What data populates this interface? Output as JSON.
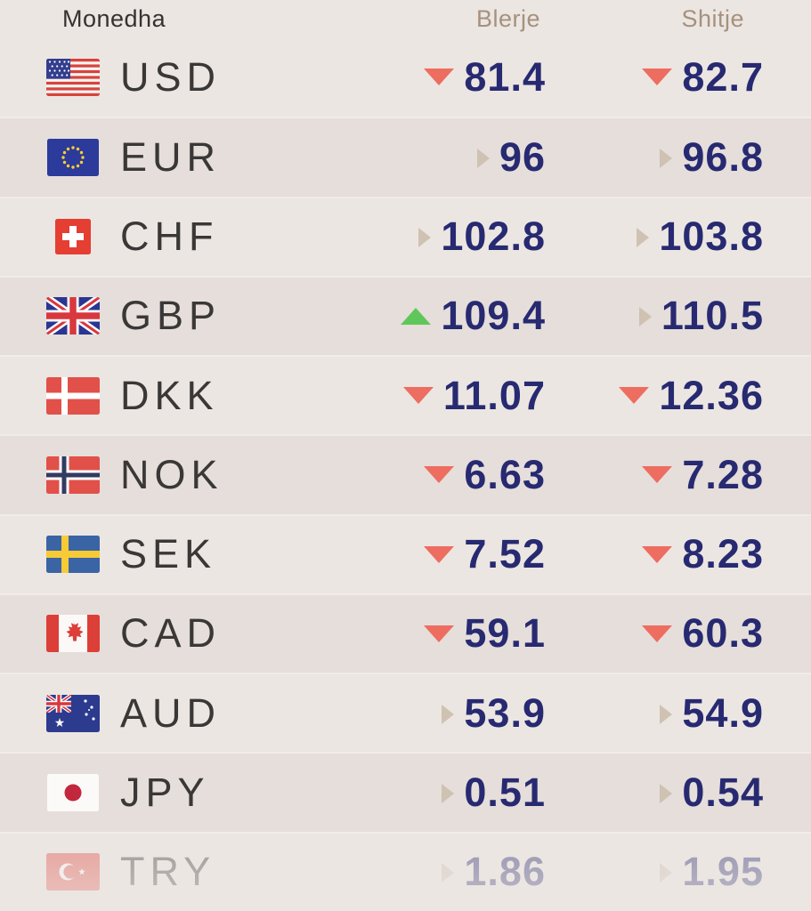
{
  "table": {
    "headers": {
      "currency": "Monedha",
      "buy": "Blerje",
      "sell": "Shitje"
    },
    "rows": [
      {
        "code": "USD",
        "flag": "flag-usa-icon",
        "buy": {
          "value": "81.4",
          "trend": "down"
        },
        "sell": {
          "value": "82.7",
          "trend": "down"
        }
      },
      {
        "code": "EUR",
        "flag": "flag-eu-icon",
        "buy": {
          "value": "96",
          "trend": "flat"
        },
        "sell": {
          "value": "96.8",
          "trend": "flat"
        }
      },
      {
        "code": "CHF",
        "flag": "flag-switzerland-icon",
        "buy": {
          "value": "102.8",
          "trend": "flat"
        },
        "sell": {
          "value": "103.8",
          "trend": "flat"
        }
      },
      {
        "code": "GBP",
        "flag": "flag-uk-icon",
        "buy": {
          "value": "109.4",
          "trend": "up"
        },
        "sell": {
          "value": "110.5",
          "trend": "flat"
        }
      },
      {
        "code": "DKK",
        "flag": "flag-denmark-icon",
        "buy": {
          "value": "11.07",
          "trend": "down"
        },
        "sell": {
          "value": "12.36",
          "trend": "down"
        }
      },
      {
        "code": "NOK",
        "flag": "flag-norway-icon",
        "buy": {
          "value": "6.63",
          "trend": "down"
        },
        "sell": {
          "value": "7.28",
          "trend": "down"
        }
      },
      {
        "code": "SEK",
        "flag": "flag-sweden-icon",
        "buy": {
          "value": "7.52",
          "trend": "down"
        },
        "sell": {
          "value": "8.23",
          "trend": "down"
        }
      },
      {
        "code": "CAD",
        "flag": "flag-canada-icon",
        "buy": {
          "value": "59.1",
          "trend": "down"
        },
        "sell": {
          "value": "60.3",
          "trend": "down"
        }
      },
      {
        "code": "AUD",
        "flag": "flag-australia-icon",
        "buy": {
          "value": "53.9",
          "trend": "flat"
        },
        "sell": {
          "value": "54.9",
          "trend": "flat"
        }
      },
      {
        "code": "JPY",
        "flag": "flag-japan-icon",
        "buy": {
          "value": "0.51",
          "trend": "flat"
        },
        "sell": {
          "value": "0.54",
          "trend": "flat"
        }
      },
      {
        "code": "TRY",
        "flag": "flag-turkey-icon",
        "buy": {
          "value": "1.86",
          "trend": "flat"
        },
        "sell": {
          "value": "1.95",
          "trend": "flat"
        },
        "faded": true
      }
    ]
  },
  "colors": {
    "value_text": "#272a71",
    "trend_down": "#ed6d60",
    "trend_up": "#5fc75a",
    "trend_flat": "#cfc2b2",
    "row_light": "#ece6e2",
    "row_dark": "#e5deda",
    "header_muted": "#a5917e"
  }
}
